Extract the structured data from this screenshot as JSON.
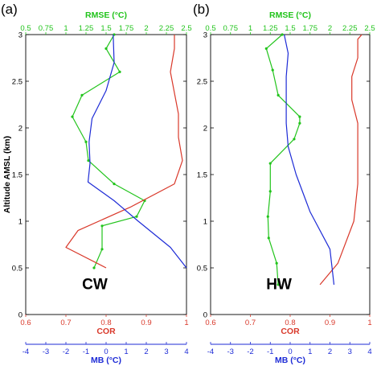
{
  "colors": {
    "rmse": "#22c41c",
    "cor": "#d9382a",
    "mb": "#1d2bd6",
    "axis": "#000000"
  },
  "chart_data": [
    {
      "type": "line",
      "panel_label": "(a)",
      "annotation": "CW",
      "ylabel": "Altitude AMSL (km)",
      "ylim": [
        0,
        3
      ],
      "yticks": [
        "0",
        "0.5",
        "1",
        "1.5",
        "2",
        "2.5",
        "3"
      ],
      "axes": {
        "rmse": {
          "label": "RMSE (°C)",
          "lim": [
            0.5,
            2.5
          ],
          "ticks": [
            "0.5",
            "0.75",
            "1",
            "1.25",
            "1.5",
            "1.75",
            "2",
            "2.25",
            "2.5"
          ]
        },
        "cor": {
          "label": "COR",
          "lim": [
            0.6,
            1.0
          ],
          "ticks": [
            "0.6",
            "0.7",
            "0.8",
            "0.9",
            "1"
          ]
        },
        "mb": {
          "label": "MB (°C)",
          "lim": [
            -4,
            4
          ],
          "ticks": [
            "-4",
            "-3",
            "-2",
            "-1",
            "0",
            "1",
            "2",
            "3",
            "4"
          ]
        }
      },
      "series": [
        {
          "axis": "rmse",
          "color_key": "rmse",
          "x": [
            1.35,
            1.45,
            1.45,
            1.88,
            1.98,
            1.6,
            1.28,
            1.25,
            1.08,
            1.2,
            1.67,
            1.5,
            1.6
          ],
          "y": [
            0.5,
            0.7,
            0.95,
            1.05,
            1.22,
            1.4,
            1.65,
            1.85,
            2.12,
            2.35,
            2.6,
            2.85,
            3.0
          ],
          "markers": true
        },
        {
          "axis": "cor",
          "color_key": "cor",
          "x": [
            0.8,
            0.7,
            0.73,
            0.86,
            0.97,
            0.99,
            0.98,
            0.98,
            0.96,
            0.97,
            0.97
          ],
          "y": [
            0.5,
            0.72,
            0.9,
            1.15,
            1.4,
            1.65,
            1.9,
            2.15,
            2.6,
            2.85,
            3.0
          ],
          "markers": false
        },
        {
          "axis": "mb",
          "color_key": "mb",
          "x": [
            4.0,
            3.2,
            1.6,
            0.4,
            -0.9,
            -0.8,
            -0.85,
            -0.7,
            0.0,
            0.4,
            0.35
          ],
          "y": [
            0.5,
            0.72,
            1.0,
            1.22,
            1.42,
            1.62,
            1.85,
            2.1,
            2.4,
            2.7,
            3.0
          ],
          "markers": false
        }
      ]
    },
    {
      "type": "line",
      "panel_label": "(b)",
      "annotation": "HW",
      "ylabel": "",
      "ylim": [
        0,
        3
      ],
      "yticks": [
        "0",
        "0.5",
        "1",
        "1.5",
        "2",
        "2.5",
        "3"
      ],
      "axes": {
        "rmse": {
          "label": "RMSE (°C)",
          "lim": [
            0.5,
            2.5
          ],
          "ticks": [
            "0.5",
            "0.75",
            "1",
            "1.25",
            "1.5",
            "1.75",
            "2",
            "2.25",
            "2.5"
          ]
        },
        "cor": {
          "label": "COR",
          "lim": [
            0.6,
            1.0
          ],
          "ticks": [
            "0.6",
            "0.7",
            "0.8",
            "0.9",
            "1"
          ]
        },
        "mb": {
          "label": "MB (°C)",
          "lim": [
            -4,
            4
          ],
          "ticks": [
            "-4",
            "-3",
            "-2",
            "-1",
            "0",
            "1",
            "2",
            "3",
            "4"
          ]
        }
      },
      "series": [
        {
          "axis": "rmse",
          "color_key": "rmse",
          "x": [
            1.35,
            1.33,
            1.23,
            1.22,
            1.25,
            1.25,
            1.55,
            1.62,
            1.62,
            1.35,
            1.28,
            1.2,
            1.4
          ],
          "y": [
            0.32,
            0.55,
            0.82,
            1.05,
            1.32,
            1.62,
            1.88,
            2.05,
            2.12,
            2.35,
            2.62,
            2.85,
            3.0
          ],
          "markers": true
        },
        {
          "axis": "cor",
          "color_key": "cor",
          "x": [
            0.875,
            0.92,
            0.96,
            0.97,
            0.97,
            0.97,
            0.955,
            0.955,
            0.97,
            0.97,
            0.98
          ],
          "y": [
            0.32,
            0.55,
            1.0,
            1.4,
            1.7,
            2.05,
            2.3,
            2.55,
            2.75,
            2.95,
            3.0
          ],
          "markers": false
        },
        {
          "axis": "mb",
          "color_key": "mb",
          "x": [
            2.2,
            2.0,
            1.0,
            0.3,
            -0.1,
            -0.2,
            -0.2,
            -0.2,
            -0.1,
            -0.3
          ],
          "y": [
            0.32,
            0.7,
            1.1,
            1.5,
            1.8,
            2.05,
            2.3,
            2.55,
            2.8,
            3.0
          ],
          "markers": false
        }
      ]
    }
  ]
}
